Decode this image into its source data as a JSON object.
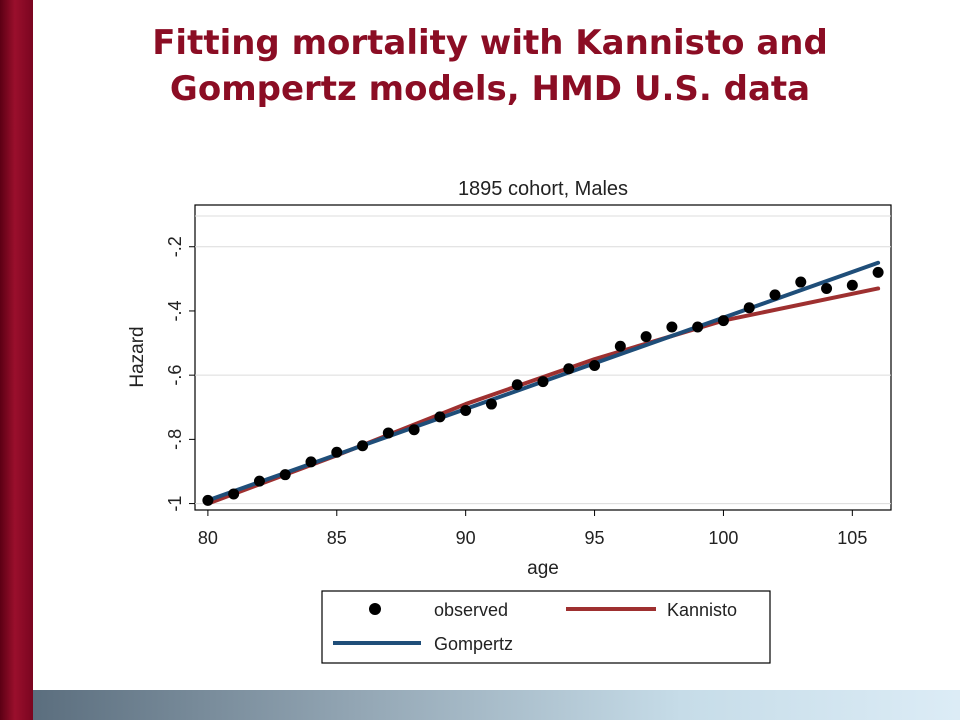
{
  "slide": {
    "title_line1": "Fitting mortality with Kannisto and",
    "title_line2": "Gompertz models, HMD U.S. data"
  },
  "colors": {
    "title": "#8b0d24",
    "observed": "#000000",
    "kannisto": "#9e3030",
    "gompertz": "#1f4e79"
  },
  "chart_data": {
    "type": "scatter",
    "title": "1895 cohort, Males",
    "xlabel": "age",
    "ylabel": "Hazard",
    "xlim": [
      79.5,
      106.5
    ],
    "ylim": [
      -1.02,
      -0.07
    ],
    "xticks": [
      80,
      85,
      90,
      95,
      100,
      105
    ],
    "yticks": [
      -1,
      -0.8,
      -0.6,
      -0.4,
      -0.2
    ],
    "ytick_labels": [
      "-1",
      "-.8",
      "-.6",
      "-.4",
      "-.2"
    ],
    "grid": "horizontal",
    "legend_position": "bottom",
    "series": [
      {
        "name": "observed",
        "kind": "scatter",
        "x": [
          80,
          81,
          82,
          83,
          84,
          85,
          86,
          87,
          88,
          89,
          90,
          91,
          92,
          93,
          94,
          95,
          96,
          97,
          98,
          99,
          100,
          101,
          102,
          103,
          104,
          105,
          106
        ],
        "y": [
          -0.99,
          -0.97,
          -0.93,
          -0.91,
          -0.87,
          -0.84,
          -0.82,
          -0.78,
          -0.77,
          -0.73,
          -0.71,
          -0.69,
          -0.63,
          -0.62,
          -0.58,
          -0.57,
          -0.51,
          -0.48,
          -0.45,
          -0.45,
          -0.43,
          -0.39,
          -0.35,
          -0.31,
          -0.33,
          -0.32,
          -0.28
        ]
      },
      {
        "name": "Kannisto",
        "kind": "line",
        "x": [
          80,
          85,
          90,
          95,
          100,
          106
        ],
        "y": [
          -1.0,
          -0.85,
          -0.69,
          -0.55,
          -0.43,
          -0.33
        ]
      },
      {
        "name": "Gompertz",
        "kind": "line",
        "x": [
          80,
          106
        ],
        "y": [
          -0.99,
          -0.25
        ]
      }
    ],
    "legend": {
      "observed": "observed",
      "kannisto": "Kannisto",
      "gompertz": "Gompertz"
    }
  }
}
